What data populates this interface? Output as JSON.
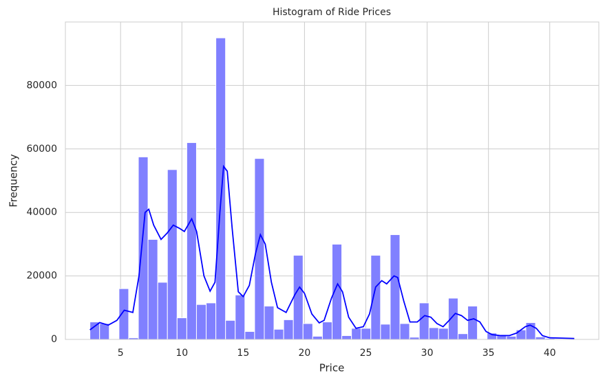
{
  "chart_data": {
    "type": "histogram",
    "title": "Histogram of Ride Prices",
    "x_label": "Price",
    "y_label": "Frequency",
    "bins": [
      2.5,
      3.29,
      4.08,
      4.87,
      5.66,
      6.45,
      7.24,
      8.03,
      8.82,
      9.61,
      10.4,
      11.19,
      11.98,
      12.77,
      13.56,
      14.35,
      15.14,
      15.93,
      16.72,
      17.51,
      18.3,
      19.09,
      19.88,
      20.67,
      21.46,
      22.25,
      23.04,
      23.83,
      24.62,
      25.41,
      26.2,
      26.99,
      27.78,
      28.57,
      29.36,
      30.15,
      30.94,
      31.73,
      32.52,
      33.31,
      34.1,
      34.89,
      35.68,
      36.47,
      37.26,
      38.05,
      38.84,
      39.63,
      40.42,
      41.21,
      42.0
    ],
    "values": [
      5500,
      5000,
      0,
      16000,
      500,
      57500,
      31500,
      18000,
      53500,
      6800,
      62000,
      11000,
      11500,
      95000,
      6000,
      14000,
      2500,
      57000,
      10500,
      3200,
      6200,
      26500,
      5000,
      1000,
      5500,
      30000,
      1200,
      3500,
      3500,
      26500,
      4800,
      33000,
      5000,
      700,
      11500,
      3700,
      3500,
      13000,
      1800,
      10500,
      0,
      2000,
      1500,
      1000,
      3000,
      5300,
      800,
      300,
      100,
      50
    ],
    "color": "#8080ff",
    "kde": {
      "color": "#0000ff",
      "x": [
        2.5,
        3.3,
        4,
        4.7,
        5.3,
        6,
        6.5,
        7,
        7.3,
        7.7,
        8.3,
        8.8,
        9.3,
        9.8,
        10.2,
        10.8,
        11.2,
        11.8,
        12.3,
        12.7,
        13.1,
        13.4,
        13.7,
        14.1,
        14.6,
        15,
        15.5,
        16,
        16.4,
        16.8,
        17.3,
        17.8,
        18.5,
        19.2,
        19.6,
        20,
        20.6,
        21.2,
        21.6,
        22.2,
        22.7,
        23.1,
        23.6,
        24.2,
        24.8,
        25.3,
        25.8,
        26.3,
        26.7,
        27.3,
        27.6,
        28.1,
        28.6,
        29.2,
        29.8,
        30.3,
        30.8,
        31.3,
        31.8,
        32.3,
        32.8,
        33.3,
        33.8,
        34.3,
        34.8,
        35.3,
        36,
        36.7,
        37.3,
        38,
        38.4,
        38.9,
        39.4,
        40,
        41,
        42
      ],
      "y": [
        3000,
        5300,
        4500,
        6000,
        9200,
        8500,
        20000,
        40000,
        41000,
        36000,
        31500,
        33500,
        36000,
        35000,
        34000,
        38000,
        34000,
        20000,
        15200,
        18000,
        40000,
        54500,
        53000,
        35000,
        15000,
        13500,
        17000,
        27000,
        33000,
        30000,
        18000,
        10000,
        8500,
        14000,
        16500,
        14500,
        8000,
        5200,
        6000,
        13000,
        17500,
        15000,
        7000,
        3500,
        4000,
        8000,
        16500,
        18500,
        17500,
        20000,
        19500,
        12000,
        5500,
        5500,
        7500,
        7000,
        5000,
        4000,
        6000,
        8200,
        7500,
        6000,
        6500,
        5500,
        2500,
        1500,
        1200,
        1200,
        2000,
        4000,
        4500,
        3500,
        1200,
        500,
        400,
        300
      ]
    },
    "xlim": [
      0.5,
      44.0
    ],
    "ylim": [
      0,
      100000
    ],
    "xticks": [
      5,
      10,
      15,
      20,
      25,
      30,
      35,
      40
    ],
    "yticks": [
      0,
      20000,
      40000,
      60000,
      80000
    ],
    "grid": true
  }
}
